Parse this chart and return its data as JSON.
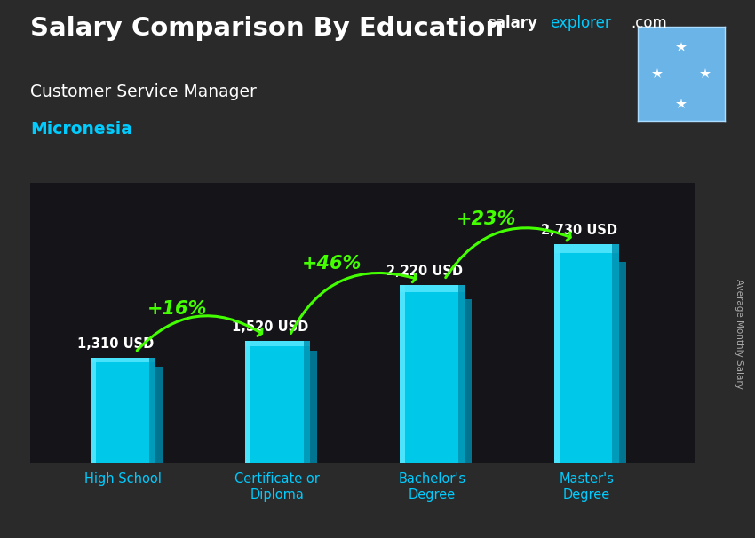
{
  "title_main": "Salary Comparison By Education",
  "subtitle": "Customer Service Manager",
  "country": "Micronesia",
  "categories": [
    "High School",
    "Certificate or\nDiploma",
    "Bachelor's\nDegree",
    "Master's\nDegree"
  ],
  "values": [
    1310,
    1520,
    2220,
    2730
  ],
  "value_labels": [
    "1,310 USD",
    "1,520 USD",
    "2,220 USD",
    "2,730 USD"
  ],
  "pct_changes": [
    "+16%",
    "+46%",
    "+23%"
  ],
  "bar_color_main": "#00c8e8",
  "bar_color_light": "#55e8ff",
  "bar_color_dark": "#0090b0",
  "bar_color_side": "#007a99",
  "arrow_color": "#44ff00",
  "pct_color": "#44ff00",
  "title_color": "#ffffff",
  "subtitle_color": "#ffffff",
  "country_color": "#00ccff",
  "value_label_color": "#ffffff",
  "xlabel_color": "#00ccff",
  "brand_text_salary": "salary",
  "brand_text_explorer": "explorer",
  "brand_text_com": ".com",
  "brand_color_salary": "#ffffff",
  "brand_color_explorer": "#00ccff",
  "brand_color_com": "#ffffff",
  "ylabel_text": "Average Monthly Salary",
  "ylabel_color": "#aaaaaa",
  "flag_bg": "#6ab4e8",
  "ylim": [
    0,
    3500
  ],
  "bar_bottom": 0,
  "figsize": [
    8.5,
    6.06
  ]
}
